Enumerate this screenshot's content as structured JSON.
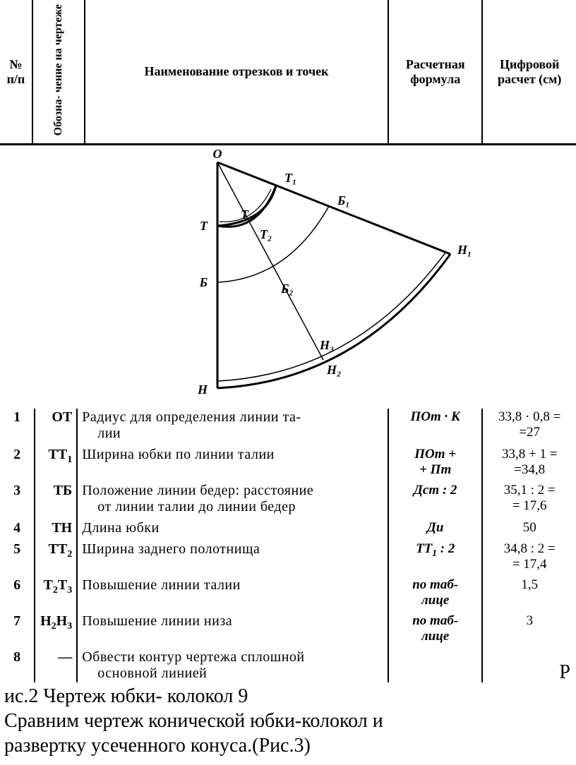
{
  "header": {
    "col_num": "№ п/п",
    "col_code": "Обозна-\nчение на\nчертеже",
    "col_name": "Наименование   отрезков  и  точек",
    "col_form": "Расчетная формула",
    "col_calc": "Цифровой расчет (см)"
  },
  "diagram": {
    "labels": {
      "O": "О",
      "T": "Т",
      "T1": "Т₁",
      "T2": "Т₂",
      "T3": "Т₃",
      "B": "Б",
      "B1": "Б₁",
      "B2": "Б₂",
      "H": "Н",
      "H1": "Н₁",
      "H2": "Н₂",
      "H3": "Н₃"
    }
  },
  "rows": [
    {
      "n": "1",
      "code": "ОТ",
      "name": "Радиус для  определения  линии  та-",
      "name2": "лии",
      "form": "ПОт · К",
      "calc": "33,8 · 0,8 =",
      "calc2": "=27"
    },
    {
      "n": "2",
      "code": "ТТ₁",
      "name": "Ширина  юбки  по  линии  талии",
      "form": "ПОт +",
      "form2": "+ Пт",
      "calc": "33,8 + 1 =",
      "calc2": "=34,8"
    },
    {
      "n": "3",
      "code": "ТБ",
      "name": "Положение линии  бедер:  расстояние",
      "name2": "от  линии  талии  до  линии  бедер",
      "form": "Дст : 2",
      "calc": "35,1 : 2 =",
      "calc2": "= 17,6"
    },
    {
      "n": "4",
      "code": "ТН",
      "name": "Длина  юбки",
      "form": "Ди",
      "calc": "50"
    },
    {
      "n": "5",
      "code": "ТТ₂",
      "name": "Ширина  заднего  полотнища",
      "form": "ТТ₁ : 2",
      "calc": "34,8 : 2 =",
      "calc2": "= 17,4"
    },
    {
      "n": "6",
      "code": "Т₂Т₃",
      "name": "Повышение  линии  талии",
      "form": "по  таб-",
      "form2": "лице",
      "calc": "1,5"
    },
    {
      "n": "7",
      "code": "Н₂Н₃",
      "name": "Повышение  линии  низа",
      "form": "по  таб-",
      "form2": "лице",
      "calc": "3"
    },
    {
      "n": "8",
      "code": "—",
      "name": "Обвести  контур  чертежа  сплошной",
      "name2": "основной  линией",
      "form": "",
      "calc": ""
    }
  ],
  "caption": {
    "hangR": "Р",
    "line1": "ис.2 Чертеж юбки- колокол 9",
    "line2": "Сравним чертеж конической юбки-колокол и",
    "line3": "развертку усеченного конуса.(Рис.3)"
  }
}
